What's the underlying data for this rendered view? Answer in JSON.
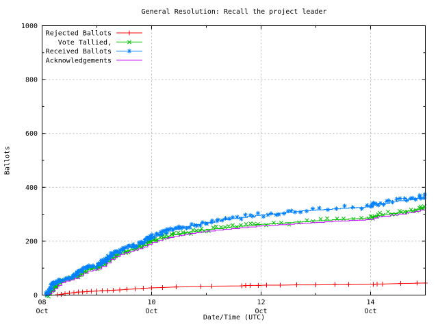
{
  "title": "General Resolution: Recall the project leader",
  "colors": {
    "background": "#ffffff",
    "axis": "#000000",
    "text": "#000000",
    "grid": "#b8b8b8",
    "rejected": "#ff0000",
    "tallied": "#00c000",
    "received": "#0080ff",
    "acknowledgements": "#c000ff"
  },
  "chart_data": {
    "type": "line",
    "title": "General Resolution: Recall the project leader",
    "xlabel": "Date/Time (UTC)",
    "ylabel": "Ballots",
    "ylim": [
      0,
      1000
    ],
    "xlim_days_from_oct08": [
      0,
      7
    ],
    "grid": "dashed gray at major ticks",
    "legend_position": "top-left-inside",
    "y_axis": {
      "major_ticks": [
        0,
        200,
        400,
        600,
        800,
        1000
      ],
      "minor_ticks": [
        100,
        300,
        500,
        700,
        900
      ]
    },
    "x_axis": {
      "major_ticks": [
        {
          "day": 0,
          "label_line1": "08",
          "label_line2": "Oct"
        },
        {
          "day": 2,
          "label_line1": "10",
          "label_line2": "Oct"
        },
        {
          "day": 4,
          "label_line1": "12",
          "label_line2": "Oct"
        },
        {
          "day": 6,
          "label_line1": "14",
          "label_line2": "Oct"
        }
      ],
      "minor_tick_days": [
        1,
        3,
        5,
        7
      ]
    },
    "series": [
      {
        "name": "Rejected Ballots",
        "color": "#ff0000",
        "marker": "plus",
        "render": "linespoints",
        "line_interpolation": "linear",
        "points": [
          [
            0.28,
            1
          ],
          [
            0.35,
            3
          ],
          [
            0.42,
            5
          ],
          [
            0.5,
            7
          ],
          [
            0.58,
            9
          ],
          [
            0.66,
            11
          ],
          [
            0.74,
            12
          ],
          [
            0.82,
            13
          ],
          [
            0.9,
            14
          ],
          [
            1.0,
            15
          ],
          [
            1.1,
            16
          ],
          [
            1.2,
            17
          ],
          [
            1.3,
            18
          ],
          [
            1.42,
            19
          ],
          [
            1.55,
            21
          ],
          [
            1.7,
            23
          ],
          [
            1.85,
            25
          ],
          [
            2.0,
            27
          ],
          [
            2.2,
            28
          ],
          [
            2.45,
            30
          ],
          [
            2.9,
            32
          ],
          [
            3.1,
            33
          ],
          [
            3.65,
            34
          ],
          [
            3.72,
            35
          ],
          [
            3.8,
            36
          ],
          [
            3.95,
            36
          ],
          [
            4.1,
            37
          ],
          [
            4.35,
            37
          ],
          [
            4.65,
            38
          ],
          [
            5.0,
            38
          ],
          [
            5.35,
            39
          ],
          [
            5.6,
            39
          ],
          [
            6.05,
            40
          ],
          [
            6.12,
            41
          ],
          [
            6.22,
            41
          ],
          [
            6.55,
            43
          ],
          [
            6.85,
            44
          ],
          [
            7.0,
            45
          ]
        ]
      },
      {
        "name": "Vote Tallied,",
        "color": "#00c000",
        "marker": "cross",
        "render": "dense-linespoints",
        "line_interpolation": "step",
        "points": [
          [
            0.1,
            0
          ],
          [
            0.13,
            7
          ],
          [
            0.17,
            16
          ],
          [
            0.22,
            28
          ],
          [
            0.28,
            41
          ],
          [
            0.35,
            51
          ],
          [
            0.42,
            57
          ],
          [
            0.5,
            61
          ],
          [
            0.58,
            67
          ],
          [
            0.67,
            77
          ],
          [
            0.75,
            87
          ],
          [
            0.83,
            94
          ],
          [
            0.92,
            98
          ],
          [
            1.0,
            102
          ],
          [
            1.08,
            111
          ],
          [
            1.17,
            124
          ],
          [
            1.25,
            138
          ],
          [
            1.33,
            148
          ],
          [
            1.42,
            156
          ],
          [
            1.5,
            162
          ],
          [
            1.58,
            167
          ],
          [
            1.67,
            172
          ],
          [
            1.75,
            177
          ],
          [
            1.83,
            184
          ],
          [
            1.92,
            193
          ],
          [
            2.0,
            201
          ],
          [
            2.1,
            208
          ],
          [
            2.2,
            214
          ],
          [
            2.3,
            219
          ],
          [
            2.4,
            224
          ],
          [
            2.5,
            228
          ],
          [
            2.6,
            232
          ],
          [
            2.7,
            235
          ],
          [
            2.8,
            238
          ],
          [
            2.9,
            241
          ],
          [
            3.0,
            244
          ],
          [
            3.15,
            247
          ],
          [
            3.3,
            250
          ],
          [
            3.45,
            253
          ],
          [
            3.6,
            256
          ],
          [
            3.75,
            259
          ],
          [
            3.9,
            262
          ],
          [
            4.0,
            263
          ],
          [
            4.15,
            265
          ],
          [
            4.3,
            267
          ],
          [
            4.45,
            269
          ],
          [
            4.6,
            271
          ],
          [
            4.75,
            273
          ],
          [
            4.9,
            275
          ],
          [
            5.0,
            276
          ],
          [
            5.15,
            278
          ],
          [
            5.3,
            280
          ],
          [
            5.45,
            281
          ],
          [
            5.6,
            283
          ],
          [
            5.75,
            284
          ],
          [
            5.9,
            286
          ],
          [
            6.0,
            287
          ],
          [
            6.05,
            292
          ],
          [
            6.12,
            296
          ],
          [
            6.2,
            299
          ],
          [
            6.35,
            303
          ],
          [
            6.5,
            307
          ],
          [
            6.65,
            312
          ],
          [
            6.8,
            317
          ],
          [
            6.9,
            322
          ],
          [
            7.0,
            330
          ]
        ]
      },
      {
        "name": "Received Ballots",
        "color": "#0080ff",
        "marker": "star",
        "render": "dense-linespoints",
        "line_interpolation": "step",
        "points": [
          [
            0.08,
            0
          ],
          [
            0.1,
            10
          ],
          [
            0.13,
            20
          ],
          [
            0.17,
            32
          ],
          [
            0.22,
            44
          ],
          [
            0.28,
            53
          ],
          [
            0.35,
            59
          ],
          [
            0.42,
            63
          ],
          [
            0.5,
            67
          ],
          [
            0.58,
            74
          ],
          [
            0.67,
            84
          ],
          [
            0.75,
            94
          ],
          [
            0.83,
            101
          ],
          [
            0.92,
            105
          ],
          [
            1.0,
            109
          ],
          [
            1.08,
            119
          ],
          [
            1.17,
            133
          ],
          [
            1.25,
            147
          ],
          [
            1.33,
            158
          ],
          [
            1.42,
            166
          ],
          [
            1.5,
            172
          ],
          [
            1.58,
            177
          ],
          [
            1.67,
            183
          ],
          [
            1.75,
            189
          ],
          [
            1.83,
            197
          ],
          [
            1.92,
            207
          ],
          [
            2.0,
            216
          ],
          [
            2.1,
            224
          ],
          [
            2.2,
            231
          ],
          [
            2.3,
            238
          ],
          [
            2.4,
            244
          ],
          [
            2.5,
            249
          ],
          [
            2.6,
            254
          ],
          [
            2.7,
            258
          ],
          [
            2.8,
            262
          ],
          [
            2.9,
            266
          ],
          [
            3.0,
            270
          ],
          [
            3.15,
            275
          ],
          [
            3.3,
            280
          ],
          [
            3.45,
            284
          ],
          [
            3.6,
            288
          ],
          [
            3.75,
            292
          ],
          [
            3.9,
            296
          ],
          [
            4.0,
            298
          ],
          [
            4.15,
            301
          ],
          [
            4.3,
            304
          ],
          [
            4.45,
            307
          ],
          [
            4.6,
            310
          ],
          [
            4.75,
            313
          ],
          [
            4.9,
            315
          ],
          [
            5.0,
            316
          ],
          [
            5.15,
            318
          ],
          [
            5.3,
            320
          ],
          [
            5.45,
            322
          ],
          [
            5.6,
            324
          ],
          [
            5.75,
            325
          ],
          [
            5.9,
            327
          ],
          [
            6.0,
            328
          ],
          [
            6.05,
            334
          ],
          [
            6.12,
            338
          ],
          [
            6.2,
            341
          ],
          [
            6.35,
            346
          ],
          [
            6.5,
            350
          ],
          [
            6.65,
            354
          ],
          [
            6.8,
            359
          ],
          [
            6.9,
            363
          ],
          [
            7.0,
            370
          ]
        ]
      },
      {
        "name": "Acknowledgements",
        "color": "#c000ff",
        "marker": "none",
        "render": "lines",
        "line_interpolation": "step",
        "points": [
          [
            0.11,
            0
          ],
          [
            0.14,
            5
          ],
          [
            0.18,
            13
          ],
          [
            0.23,
            24
          ],
          [
            0.29,
            36
          ],
          [
            0.36,
            46
          ],
          [
            0.43,
            52
          ],
          [
            0.51,
            56
          ],
          [
            0.59,
            62
          ],
          [
            0.68,
            72
          ],
          [
            0.76,
            82
          ],
          [
            0.84,
            89
          ],
          [
            0.93,
            93
          ],
          [
            1.01,
            97
          ],
          [
            1.09,
            106
          ],
          [
            1.18,
            119
          ],
          [
            1.26,
            133
          ],
          [
            1.34,
            143
          ],
          [
            1.43,
            151
          ],
          [
            1.51,
            157
          ],
          [
            1.59,
            162
          ],
          [
            1.68,
            167
          ],
          [
            1.76,
            172
          ],
          [
            1.84,
            179
          ],
          [
            1.93,
            188
          ],
          [
            2.01,
            196
          ],
          [
            2.11,
            203
          ],
          [
            2.21,
            209
          ],
          [
            2.31,
            214
          ],
          [
            2.41,
            218
          ],
          [
            2.51,
            222
          ],
          [
            2.61,
            226
          ],
          [
            2.71,
            229
          ],
          [
            2.81,
            232
          ],
          [
            2.91,
            235
          ],
          [
            3.01,
            238
          ],
          [
            3.16,
            241
          ],
          [
            3.31,
            244
          ],
          [
            3.46,
            247
          ],
          [
            3.61,
            250
          ],
          [
            3.76,
            253
          ],
          [
            3.91,
            256
          ],
          [
            4.01,
            257
          ],
          [
            4.16,
            259
          ],
          [
            4.31,
            261
          ],
          [
            4.46,
            263
          ],
          [
            4.61,
            265
          ],
          [
            4.76,
            267
          ],
          [
            4.91,
            269
          ],
          [
            5.01,
            270
          ],
          [
            5.16,
            272
          ],
          [
            5.31,
            274
          ],
          [
            5.46,
            275
          ],
          [
            5.61,
            277
          ],
          [
            5.76,
            278
          ],
          [
            5.91,
            280
          ],
          [
            6.01,
            281
          ],
          [
            6.06,
            286
          ],
          [
            6.13,
            290
          ],
          [
            6.21,
            293
          ],
          [
            6.36,
            297
          ],
          [
            6.51,
            301
          ],
          [
            6.66,
            306
          ],
          [
            6.81,
            311
          ],
          [
            6.91,
            316
          ],
          [
            7.0,
            323
          ]
        ]
      }
    ]
  }
}
